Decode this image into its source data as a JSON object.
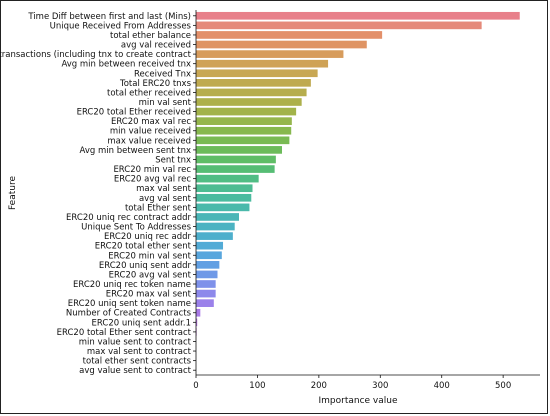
{
  "chart_data": {
    "type": "bar",
    "orientation": "horizontal",
    "title": "",
    "xlabel": "Importance value",
    "ylabel": "Feature",
    "xlim": [
      0,
      560
    ],
    "x_ticks": [
      0,
      100,
      200,
      300,
      400,
      500
    ],
    "grid": false,
    "legend": "none",
    "categories": [
      "Time Diff between first and last (Mins)",
      "Unique Received From Addresses",
      "total ether balance",
      "avg val received",
      "total transactions (including tnx to create contract",
      "Avg min between received tnx",
      "Received Tnx",
      "Total ERC20 tnxs",
      "total ether received",
      "min val sent",
      "ERC20 total Ether received",
      "ERC20 max val rec",
      "min value received",
      "max value received",
      "Avg min between sent tnx",
      "Sent tnx",
      "ERC20 min val rec",
      "ERC20 avg val rec",
      "max val sent",
      "avg val sent",
      "total Ether sent",
      "ERC20 uniq rec contract addr",
      "Unique Sent To Addresses",
      "ERC20 uniq rec addr",
      "ERC20 total ether sent",
      "ERC20 min val sent",
      "ERC20 uniq sent addr",
      "ERC20 avg val sent",
      "ERC20 uniq rec token name",
      "ERC20 max val sent",
      "ERC20 uniq sent token name",
      "Number of Created Contracts",
      "ERC20 uniq sent addr.1",
      "ERC20 total Ether sent contract",
      "min value sent to contract",
      "max val sent to contract",
      "total ether sent contracts",
      "avg value sent to contract"
    ],
    "values": [
      527,
      465,
      303,
      278,
      240,
      215,
      198,
      187,
      180,
      172,
      163,
      156,
      155,
      152,
      140,
      130,
      128,
      102,
      92,
      90,
      87,
      70,
      63,
      60,
      44,
      42,
      38,
      35,
      32,
      32,
      29,
      7,
      2,
      1,
      0,
      0,
      0,
      0
    ],
    "colors": [
      "#e8808a",
      "#e58a7a",
      "#e3906a",
      "#df9464",
      "#d79c5c",
      "#cfa256",
      "#c8a754",
      "#bfaa50",
      "#b6ad4d",
      "#adb04b",
      "#a2b34a",
      "#95b64c",
      "#87b84e",
      "#79ba53",
      "#6cbb5a",
      "#5fbd66",
      "#56bd74",
      "#50bd84",
      "#4dbc92",
      "#4bbb9f",
      "#4ab9ab",
      "#4ab6b7",
      "#4bb3c2",
      "#4dafcc",
      "#52abd6",
      "#58a6dd",
      "#62a0e3",
      "#6f99e7",
      "#7e91ea",
      "#8d89eb",
      "#9b81ea",
      "#a97ae7",
      "#b674e2",
      "#c26fdb",
      "#cb6cd2",
      "#d36bc7",
      "#d96bbb",
      "#de6cae"
    ]
  }
}
